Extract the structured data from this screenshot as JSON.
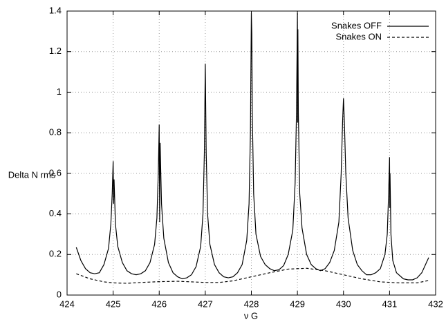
{
  "chart_data": {
    "type": "line",
    "xlabel": "ν G",
    "ylabel": "Delta N rms",
    "xlim": [
      424,
      432
    ],
    "ylim": [
      0,
      1.4
    ],
    "xticks": [
      424,
      425,
      426,
      427,
      428,
      429,
      430,
      431,
      432
    ],
    "yticks": [
      0,
      0.2,
      0.4,
      0.6,
      0.8,
      1,
      1.2,
      1.4
    ],
    "grid": true,
    "legend": "top-right",
    "series": [
      {
        "name": "Snakes OFF",
        "color": "#000000",
        "dash": "solid",
        "x": [
          424.2,
          424.3,
          424.4,
          424.5,
          424.6,
          424.7,
          424.8,
          424.9,
          424.95,
          424.98,
          425.0,
          425.01,
          425.02,
          425.05,
          425.1,
          425.2,
          425.3,
          425.4,
          425.5,
          425.6,
          425.7,
          425.8,
          425.9,
          425.95,
          425.98,
          426.0,
          426.01,
          426.02,
          426.05,
          426.1,
          426.2,
          426.3,
          426.4,
          426.5,
          426.6,
          426.7,
          426.8,
          426.9,
          426.95,
          426.98,
          427.0,
          427.02,
          427.05,
          427.1,
          427.2,
          427.3,
          427.4,
          427.5,
          427.6,
          427.7,
          427.8,
          427.9,
          427.95,
          427.98,
          428.0,
          428.01,
          428.02,
          428.05,
          428.1,
          428.2,
          428.3,
          428.4,
          428.5,
          428.6,
          428.7,
          428.8,
          428.9,
          428.95,
          428.98,
          429.0,
          429.005,
          429.01,
          429.02,
          429.05,
          429.1,
          429.2,
          429.3,
          429.4,
          429.5,
          429.6,
          429.7,
          429.8,
          429.9,
          429.95,
          429.98,
          430.0,
          430.02,
          430.05,
          430.1,
          430.2,
          430.3,
          430.4,
          430.5,
          430.6,
          430.7,
          430.8,
          430.9,
          430.95,
          430.98,
          431.0,
          431.005,
          431.01,
          431.03,
          431.07,
          431.15,
          431.3,
          431.4,
          431.5,
          431.6,
          431.7,
          431.8,
          431.85
        ],
        "values": [
          0.235,
          0.17,
          0.13,
          0.11,
          0.105,
          0.11,
          0.15,
          0.23,
          0.35,
          0.5,
          0.66,
          0.45,
          0.57,
          0.35,
          0.24,
          0.16,
          0.12,
          0.105,
          0.1,
          0.105,
          0.12,
          0.16,
          0.25,
          0.38,
          0.6,
          0.84,
          0.36,
          0.75,
          0.45,
          0.28,
          0.16,
          0.11,
          0.09,
          0.08,
          0.085,
          0.1,
          0.14,
          0.24,
          0.4,
          0.7,
          1.14,
          0.7,
          0.4,
          0.25,
          0.15,
          0.11,
          0.09,
          0.085,
          0.09,
          0.11,
          0.15,
          0.27,
          0.45,
          0.8,
          1.39,
          1.29,
          0.9,
          0.5,
          0.3,
          0.19,
          0.15,
          0.13,
          0.12,
          0.125,
          0.145,
          0.2,
          0.32,
          0.55,
          0.9,
          1.39,
          0.85,
          1.31,
          0.9,
          0.5,
          0.33,
          0.2,
          0.15,
          0.13,
          0.12,
          0.13,
          0.16,
          0.22,
          0.36,
          0.6,
          0.85,
          0.97,
          0.85,
          0.6,
          0.38,
          0.22,
          0.15,
          0.12,
          0.1,
          0.1,
          0.11,
          0.13,
          0.2,
          0.3,
          0.5,
          0.68,
          0.43,
          0.6,
          0.3,
          0.17,
          0.11,
          0.08,
          0.075,
          0.075,
          0.085,
          0.11,
          0.16,
          0.185
        ]
      },
      {
        "name": "Snakes ON",
        "color": "#000000",
        "dash": "dashed",
        "x": [
          424.2,
          424.5,
          424.8,
          425,
          425.3,
          425.6,
          426,
          426.4,
          426.8,
          427,
          427.3,
          427.6,
          428,
          428.4,
          428.8,
          429.2,
          429.6,
          430,
          430.4,
          430.8,
          431.2,
          431.6,
          431.85
        ],
        "values": [
          0.105,
          0.08,
          0.065,
          0.06,
          0.058,
          0.062,
          0.066,
          0.068,
          0.064,
          0.062,
          0.062,
          0.07,
          0.09,
          0.11,
          0.128,
          0.132,
          0.12,
          0.1,
          0.08,
          0.065,
          0.06,
          0.06,
          0.072
        ]
      }
    ]
  }
}
